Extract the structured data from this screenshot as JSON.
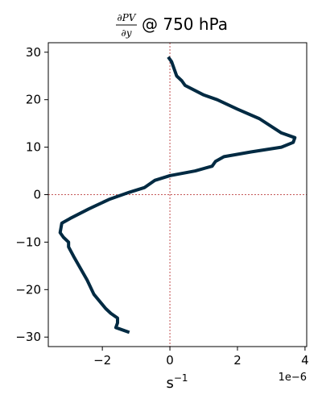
{
  "chart_data": {
    "type": "line",
    "title_fraction": {
      "numerator": "∂PV",
      "denominator": "∂y"
    },
    "title_suffix": "@ 750 hPa",
    "xlabel_base": "s",
    "xlabel_exponent": "−1",
    "x_offset_label": "1e−6",
    "x_tick_values": [
      -2,
      0,
      2,
      4
    ],
    "x_tick_labels": [
      "−2",
      "0",
      "2",
      "4"
    ],
    "y_tick_values": [
      -30,
      -20,
      -10,
      0,
      10,
      20,
      30
    ],
    "y_tick_labels": [
      "−30",
      "−20",
      "−10",
      "0",
      "10",
      "20",
      "30"
    ],
    "xlim": [
      -3.6,
      4.05
    ],
    "ylim": [
      -32,
      32
    ],
    "line_color": "#002a42",
    "reference_line_color": "#b22222",
    "series": [
      {
        "x": [
          -1.2,
          -1.6,
          -1.55,
          -1.55,
          -1.75,
          -1.9,
          -2.25,
          -2.45,
          -2.85,
          -3.0,
          -3.0,
          -3.15,
          -3.25,
          -3.2,
          -2.95,
          -2.4,
          -1.8,
          -1.2,
          -0.75,
          -0.45,
          0.0,
          0.75,
          1.25,
          1.35,
          1.6,
          2.4,
          3.3,
          3.65,
          3.7,
          3.3,
          2.65,
          2.0,
          1.4,
          1.0,
          0.45,
          0.35,
          0.2,
          0.05,
          -0.05
        ],
        "y": [
          -29,
          -28,
          -27,
          -26,
          -25,
          -24,
          -21,
          -18,
          -13,
          -11,
          -10,
          -9,
          -8,
          -6,
          -5,
          -3,
          -1,
          0.5,
          1.5,
          3,
          4,
          5,
          6,
          7,
          8,
          9,
          10,
          11,
          12,
          13,
          16,
          18,
          20,
          21,
          23,
          24,
          25,
          28,
          29
        ]
      }
    ]
  }
}
